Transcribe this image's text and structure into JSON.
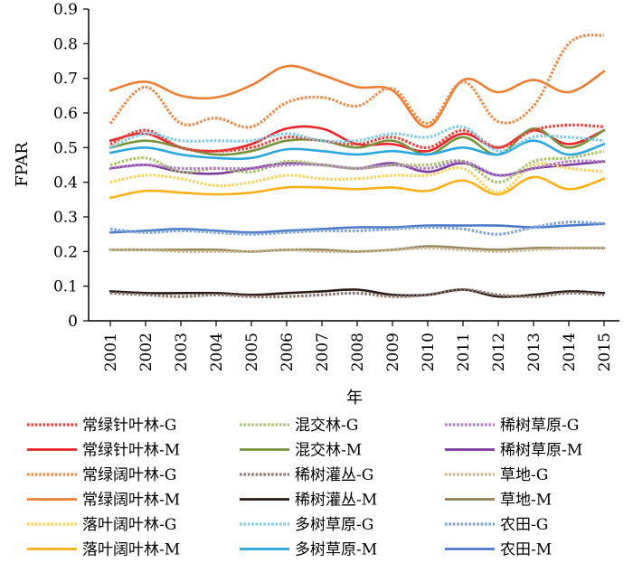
{
  "chart_data": {
    "type": "line",
    "xlabel": "年",
    "ylabel": "FPAR",
    "ylim": [
      0,
      0.9
    ],
    "yticks": [
      0,
      0.1,
      0.2,
      0.3,
      0.4,
      0.5,
      0.6,
      0.7,
      0.8,
      0.9
    ],
    "ytick_labels": [
      "0",
      "0.1",
      "0.2",
      "0.3",
      "0.4",
      "0.5",
      "0.6",
      "0.7",
      "0.8",
      "0.9"
    ],
    "categories": [
      "2001",
      "2002",
      "2003",
      "2004",
      "2005",
      "2006",
      "2007",
      "2008",
      "2009",
      "2010",
      "2011",
      "2012",
      "2013",
      "2014",
      "2015"
    ],
    "grid": false,
    "legend_position": "bottom",
    "series": [
      {
        "name": "常绿针叶林-G",
        "color": "#e8453c",
        "dash": "dotted",
        "values": [
          0.51,
          0.55,
          0.5,
          0.49,
          0.5,
          0.53,
          0.52,
          0.51,
          0.53,
          0.5,
          0.55,
          0.5,
          0.55,
          0.565,
          0.56
        ]
      },
      {
        "name": "常绿针叶林-M",
        "color": "#e8242b",
        "dash": "solid",
        "values": [
          0.52,
          0.54,
          0.5,
          0.49,
          0.51,
          0.555,
          0.555,
          0.51,
          0.51,
          0.49,
          0.54,
          0.5,
          0.55,
          0.51,
          0.55
        ]
      },
      {
        "name": "常绿阔叶林-G",
        "color": "#f08a4b",
        "dash": "dotted",
        "values": [
          0.57,
          0.675,
          0.57,
          0.585,
          0.56,
          0.63,
          0.645,
          0.62,
          0.67,
          0.57,
          0.69,
          0.575,
          0.62,
          0.8,
          0.825
        ]
      },
      {
        "name": "常绿阔叶林-M",
        "color": "#ed7d31",
        "dash": "solid",
        "values": [
          0.665,
          0.69,
          0.65,
          0.645,
          0.68,
          0.735,
          0.71,
          0.675,
          0.665,
          0.56,
          0.695,
          0.66,
          0.695,
          0.66,
          0.72
        ]
      },
      {
        "name": "落叶阔叶林-G",
        "color": "#fdd25a",
        "dash": "dotted",
        "values": [
          0.4,
          0.42,
          0.41,
          0.39,
          0.4,
          0.42,
          0.41,
          0.41,
          0.42,
          0.42,
          0.44,
          0.37,
          0.45,
          0.44,
          0.43
        ]
      },
      {
        "name": "落叶阔叶林-M",
        "color": "#fbb117",
        "dash": "solid",
        "values": [
          0.355,
          0.375,
          0.37,
          0.365,
          0.37,
          0.385,
          0.385,
          0.38,
          0.385,
          0.375,
          0.405,
          0.365,
          0.415,
          0.38,
          0.41
        ]
      },
      {
        "name": "混交林-G",
        "color": "#a9c46a",
        "dash": "dotted",
        "values": [
          0.45,
          0.47,
          0.43,
          0.44,
          0.43,
          0.46,
          0.45,
          0.44,
          0.45,
          0.45,
          0.46,
          0.4,
          0.46,
          0.47,
          0.49
        ]
      },
      {
        "name": "混交林-M",
        "color": "#77933c",
        "dash": "solid",
        "values": [
          0.5,
          0.52,
          0.5,
          0.48,
          0.49,
          0.52,
          0.52,
          0.5,
          0.52,
          0.48,
          0.53,
          0.48,
          0.555,
          0.5,
          0.55
        ]
      },
      {
        "name": "稀树灌丛-G",
        "color": "#8a7570",
        "dash": "dotted",
        "values": [
          0.08,
          0.075,
          0.07,
          0.075,
          0.07,
          0.07,
          0.075,
          0.08,
          0.07,
          0.075,
          0.09,
          0.075,
          0.07,
          0.08,
          0.075
        ]
      },
      {
        "name": "稀树灌丛-M",
        "color": "#2b1a16",
        "dash": "solid",
        "values": [
          0.085,
          0.08,
          0.08,
          0.08,
          0.075,
          0.08,
          0.085,
          0.09,
          0.075,
          0.075,
          0.09,
          0.07,
          0.075,
          0.085,
          0.08
        ]
      },
      {
        "name": "多树草原-G",
        "color": "#7fcbe8",
        "dash": "dotted",
        "values": [
          0.5,
          0.54,
          0.52,
          0.52,
          0.52,
          0.54,
          0.52,
          0.52,
          0.54,
          0.53,
          0.56,
          0.49,
          0.53,
          0.53,
          0.52
        ]
      },
      {
        "name": "多树草原-M",
        "color": "#2aa7dd",
        "dash": "solid",
        "values": [
          0.485,
          0.5,
          0.48,
          0.47,
          0.47,
          0.495,
          0.49,
          0.48,
          0.49,
          0.48,
          0.5,
          0.48,
          0.52,
          0.48,
          0.51
        ]
      },
      {
        "name": "稀树草原-G",
        "color": "#b07cc6",
        "dash": "dotted",
        "values": [
          0.44,
          0.45,
          0.44,
          0.44,
          0.44,
          0.45,
          0.45,
          0.44,
          0.45,
          0.44,
          0.46,
          0.42,
          0.44,
          0.46,
          0.46
        ]
      },
      {
        "name": "稀树草原-M",
        "color": "#7c3c9d",
        "dash": "solid",
        "values": [
          0.44,
          0.45,
          0.43,
          0.425,
          0.44,
          0.455,
          0.45,
          0.44,
          0.455,
          0.43,
          0.455,
          0.42,
          0.44,
          0.45,
          0.46
        ]
      },
      {
        "name": "草地-G",
        "color": "#c9b58f",
        "dash": "dotted",
        "values": [
          0.205,
          0.205,
          0.2,
          0.2,
          0.2,
          0.205,
          0.2,
          0.2,
          0.205,
          0.21,
          0.205,
          0.2,
          0.205,
          0.21,
          0.21
        ]
      },
      {
        "name": "草地-M",
        "color": "#938055",
        "dash": "solid",
        "values": [
          0.205,
          0.205,
          0.205,
          0.205,
          0.2,
          0.205,
          0.205,
          0.2,
          0.205,
          0.215,
          0.21,
          0.205,
          0.21,
          0.21,
          0.21
        ]
      },
      {
        "name": "农田-G",
        "color": "#7ea2d8",
        "dash": "dotted",
        "values": [
          0.265,
          0.255,
          0.26,
          0.255,
          0.25,
          0.255,
          0.26,
          0.26,
          0.265,
          0.27,
          0.265,
          0.25,
          0.27,
          0.285,
          0.28
        ]
      },
      {
        "name": "农田-M",
        "color": "#4a78c8",
        "dash": "solid",
        "values": [
          0.255,
          0.26,
          0.265,
          0.26,
          0.255,
          0.26,
          0.265,
          0.27,
          0.27,
          0.275,
          0.275,
          0.275,
          0.27,
          0.275,
          0.28
        ]
      }
    ]
  }
}
